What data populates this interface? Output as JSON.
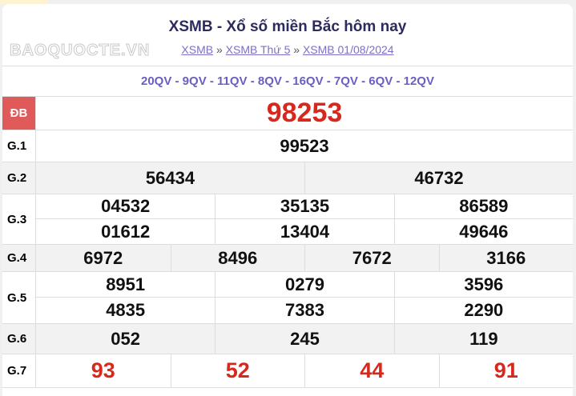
{
  "header": {
    "title": "XSMB - Xổ số miền Bắc hôm nay",
    "breadcrumb": [
      "XSMB",
      "XSMB Thứ 5",
      "XSMB 01/08/2024"
    ],
    "separator": "»"
  },
  "codes": "20QV - 9QV - 11QV - 8QV - 16QV - 7QV - 6QV - 12QV",
  "prizes": [
    {
      "label": "ĐB",
      "numbers": [
        "98253"
      ]
    },
    {
      "label": "G.1",
      "numbers": [
        "99523"
      ]
    },
    {
      "label": "G.2",
      "numbers": [
        "56434",
        "46732"
      ]
    },
    {
      "label": "G.3",
      "numbers": [
        "04532",
        "35135",
        "86589",
        "01612",
        "13404",
        "49646"
      ]
    },
    {
      "label": "G.4",
      "numbers": [
        "6972",
        "8496",
        "7672",
        "3166"
      ]
    },
    {
      "label": "G.5",
      "numbers": [
        "8951",
        "0279",
        "3596",
        "4835",
        "7383",
        "2290"
      ]
    },
    {
      "label": "G.6",
      "numbers": [
        "052",
        "245",
        "119"
      ]
    },
    {
      "label": "G.7",
      "numbers": [
        "93",
        "52",
        "44",
        "91"
      ]
    }
  ],
  "watermark": "BAOQUOCTE.VN",
  "colors": {
    "special": "#d7281e",
    "link": "#7b6fc8",
    "db_label_bg": "#e05a5a"
  }
}
